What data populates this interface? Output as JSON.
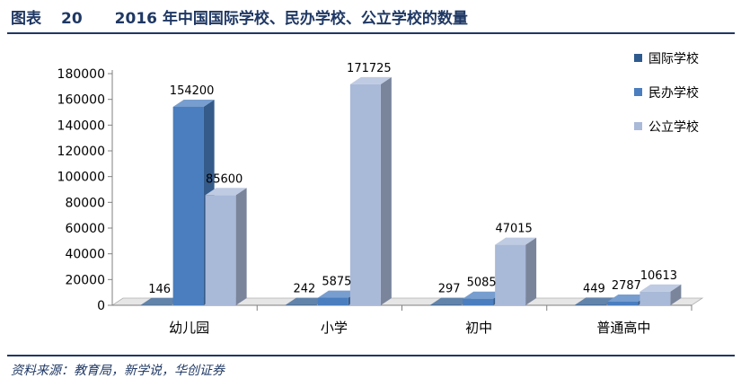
{
  "header": {
    "label": "图表",
    "number": "20",
    "title": "2016 年中国国际学校、民办学校、公立学校的数量"
  },
  "source": "资料来源：教育局，新学说，华创证券",
  "colors": {
    "international": "#2e5a8e",
    "private": "#4a7ebf",
    "public": "#a9b9d8",
    "rule": "#1f3864",
    "title": "#1f3864"
  },
  "chart_data": {
    "type": "bar",
    "categories": [
      "幼儿园",
      "小学",
      "初中",
      "普通高中"
    ],
    "series": [
      {
        "name": "国际学校",
        "values": [
          146,
          242,
          297,
          449
        ]
      },
      {
        "name": "民办学校",
        "values": [
          154200,
          5875,
          5085,
          2787
        ]
      },
      {
        "name": "公立学校",
        "values": [
          85600,
          171725,
          47015,
          10613
        ]
      }
    ],
    "yticks": [
      "0",
      "20000",
      "40000",
      "60000",
      "80000",
      "100000",
      "120000",
      "140000",
      "160000",
      "180000"
    ],
    "ylim": [
      0,
      180000
    ],
    "legend_position": "top-right",
    "grid": false,
    "style": "3d"
  }
}
